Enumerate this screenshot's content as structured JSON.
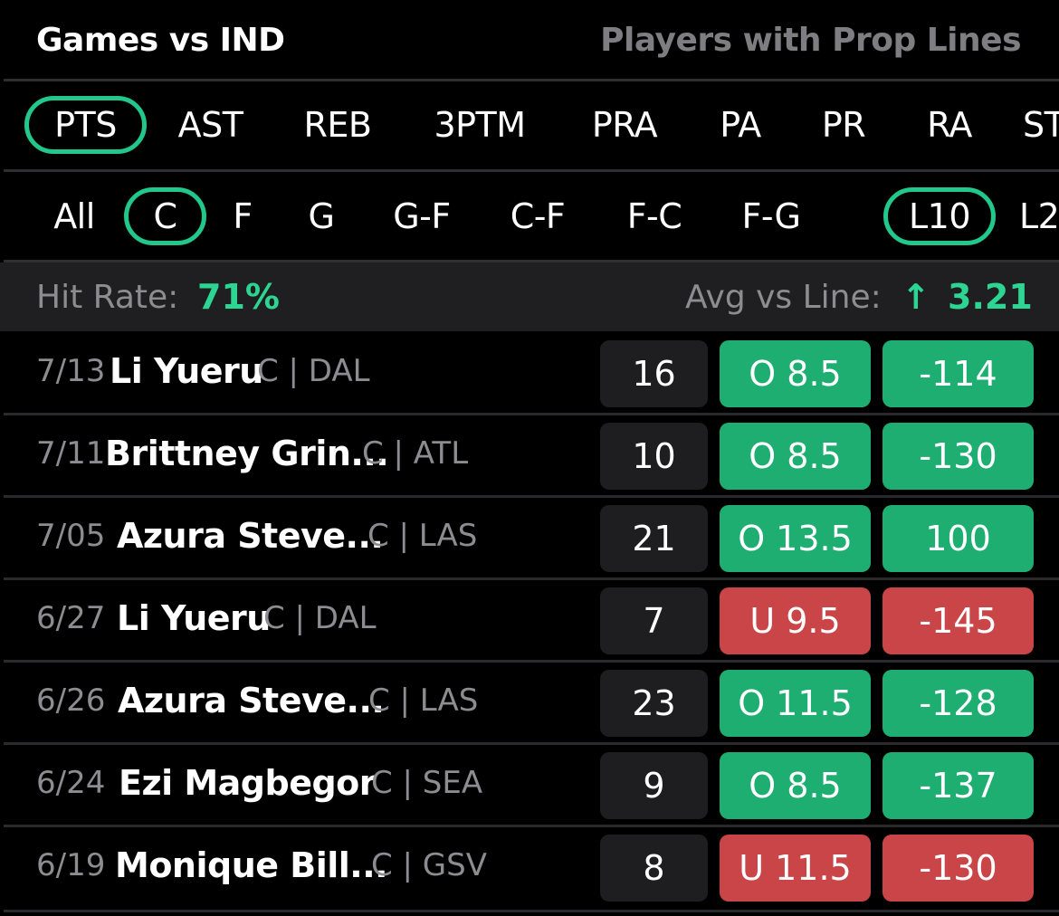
{
  "header": {
    "title": "Games vs IND",
    "subtitle": "Players with Prop Lines"
  },
  "stat_tabs": [
    "PTS",
    "AST",
    "REB",
    "3PTM",
    "PRA",
    "PA",
    "PR",
    "RA",
    "ST"
  ],
  "stat_tabs_selected": "PTS",
  "positions": [
    "All",
    "C",
    "F",
    "G",
    "G-F",
    "C-F",
    "F-C",
    "F-G"
  ],
  "positions_selected": "C",
  "ranges": [
    "L10",
    "L2"
  ],
  "ranges_selected": "L10",
  "summary": {
    "hit_rate_label": "Hit Rate:",
    "hit_rate_value": "71%",
    "avg_label": "Avg vs Line:",
    "avg_arrow": "↑",
    "avg_value": "3.21"
  },
  "colors": {
    "accent": "#22c78b",
    "over": "#1fae72",
    "under": "#c94548"
  },
  "games": [
    {
      "date": "7/13",
      "player": "Li Yueru",
      "team": "C | DAL",
      "score": "16",
      "line": "O 8.5",
      "odds": "-114",
      "result": "over"
    },
    {
      "date": "7/11",
      "player": "Brittney Grin...",
      "team": "C | ATL",
      "score": "10",
      "line": "O 8.5",
      "odds": "-130",
      "result": "over"
    },
    {
      "date": "7/05",
      "player": "Azura Steve...",
      "team": "C | LAS",
      "score": "21",
      "line": "O 13.5",
      "odds": "100",
      "result": "over"
    },
    {
      "date": "6/27",
      "player": "Li Yueru",
      "team": "C | DAL",
      "score": "7",
      "line": "U 9.5",
      "odds": "-145",
      "result": "under"
    },
    {
      "date": "6/26",
      "player": "Azura Steve...",
      "team": "C | LAS",
      "score": "23",
      "line": "O 11.5",
      "odds": "-128",
      "result": "over"
    },
    {
      "date": "6/24",
      "player": "Ezi Magbegor",
      "team": "C | SEA",
      "score": "9",
      "line": "O 8.5",
      "odds": "-137",
      "result": "over"
    },
    {
      "date": "6/19",
      "player": "Monique Bill...",
      "team": "C | GSV",
      "score": "8",
      "line": "U 11.5",
      "odds": "-130",
      "result": "under"
    }
  ]
}
